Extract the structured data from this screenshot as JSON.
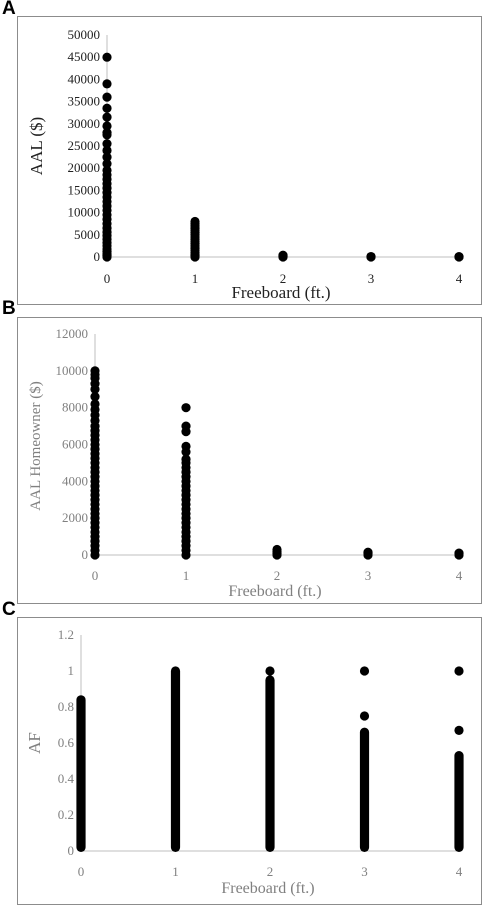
{
  "chart_data": [
    {
      "panel": "A",
      "type": "scatter",
      "xlabel": "Freeboard (ft.)",
      "ylabel": "AAL ($)",
      "xticks": [
        "0",
        "1",
        "2",
        "3",
        "4"
      ],
      "yticks": [
        "0",
        "5000",
        "10000",
        "15000",
        "20000",
        "25000",
        "30000",
        "35000",
        "40000",
        "45000",
        "50000"
      ],
      "xlim": [
        0,
        4
      ],
      "ylim": [
        0,
        50000
      ],
      "text_color": "#222222",
      "series": [
        {
          "x": 0,
          "values": [
            0,
            300,
            700,
            1200,
            1800,
            2500,
            3200,
            4000,
            4800,
            5600,
            6500,
            7500,
            8500,
            9500,
            10500,
            11500,
            12500,
            13500,
            14500,
            15500,
            16500,
            17500,
            18500,
            19500,
            21000,
            22500,
            24000,
            25500,
            27500,
            28000,
            29500,
            31500,
            33500,
            36000,
            39000,
            45000
          ]
        },
        {
          "x": 1,
          "values": [
            0,
            300,
            600,
            1000,
            1500,
            2000,
            2500,
            3000,
            3500,
            4000,
            4500,
            5000,
            5500,
            6000,
            6500,
            7000,
            7500,
            8000
          ]
        },
        {
          "x": 2,
          "values": [
            0,
            200,
            400
          ]
        },
        {
          "x": 3,
          "values": [
            0,
            100
          ]
        },
        {
          "x": 4,
          "values": [
            0,
            80
          ]
        }
      ]
    },
    {
      "panel": "B",
      "type": "scatter",
      "xlabel": "Freeboard (ft.)",
      "ylabel": "AAL Homeowner ($)",
      "xticks": [
        "0",
        "1",
        "2",
        "3",
        "4"
      ],
      "yticks": [
        "0",
        "2000",
        "4000",
        "6000",
        "8000",
        "10000",
        "12000"
      ],
      "xlim": [
        0,
        4
      ],
      "ylim": [
        0,
        12000
      ],
      "text_color": "#808080",
      "series": [
        {
          "x": 0,
          "values": [
            0,
            250,
            500,
            750,
            1000,
            1250,
            1500,
            1750,
            2000,
            2250,
            2500,
            2750,
            3000,
            3250,
            3500,
            3750,
            4000,
            4250,
            4500,
            4750,
            5000,
            5250,
            5500,
            5750,
            6000,
            6250,
            6500,
            6750,
            7000,
            7300,
            7600,
            7900,
            8200,
            8600,
            9000,
            9300,
            9600,
            9800,
            10000
          ]
        },
        {
          "x": 1,
          "values": [
            0,
            250,
            500,
            750,
            1000,
            1250,
            1500,
            1750,
            2000,
            2250,
            2500,
            2750,
            3000,
            3250,
            3500,
            3750,
            4000,
            4250,
            4500,
            4750,
            5000,
            5200,
            5600,
            5900,
            6700,
            7000,
            8000
          ]
        },
        {
          "x": 2,
          "values": [
            0,
            100,
            200,
            300
          ]
        },
        {
          "x": 3,
          "values": [
            0,
            100,
            150
          ]
        },
        {
          "x": 4,
          "values": [
            0,
            100
          ]
        }
      ]
    },
    {
      "panel": "C",
      "type": "scatter",
      "xlabel": "Freeboard (ft.)",
      "ylabel": "AF",
      "xticks": [
        "0",
        "1",
        "2",
        "3",
        "4"
      ],
      "yticks": [
        "0",
        "0.2",
        "0.4",
        "0.6",
        "0.8",
        "1",
        "1.2"
      ],
      "xlim": [
        0,
        4
      ],
      "ylim": [
        0,
        1.2
      ],
      "text_color": "#808080",
      "series": [
        {
          "x": 0,
          "range": [
            0.02,
            0.84
          ],
          "values": []
        },
        {
          "x": 1,
          "range": [
            0.02,
            1.0
          ],
          "values": []
        },
        {
          "x": 2,
          "range": [
            0.02,
            0.95
          ],
          "values": [
            1.0
          ]
        },
        {
          "x": 3,
          "range": [
            0.02,
            0.66
          ],
          "values": [
            0.75,
            1.0
          ]
        },
        {
          "x": 4,
          "range": [
            0.02,
            0.53
          ],
          "values": [
            0.67,
            1.0
          ]
        }
      ]
    }
  ]
}
